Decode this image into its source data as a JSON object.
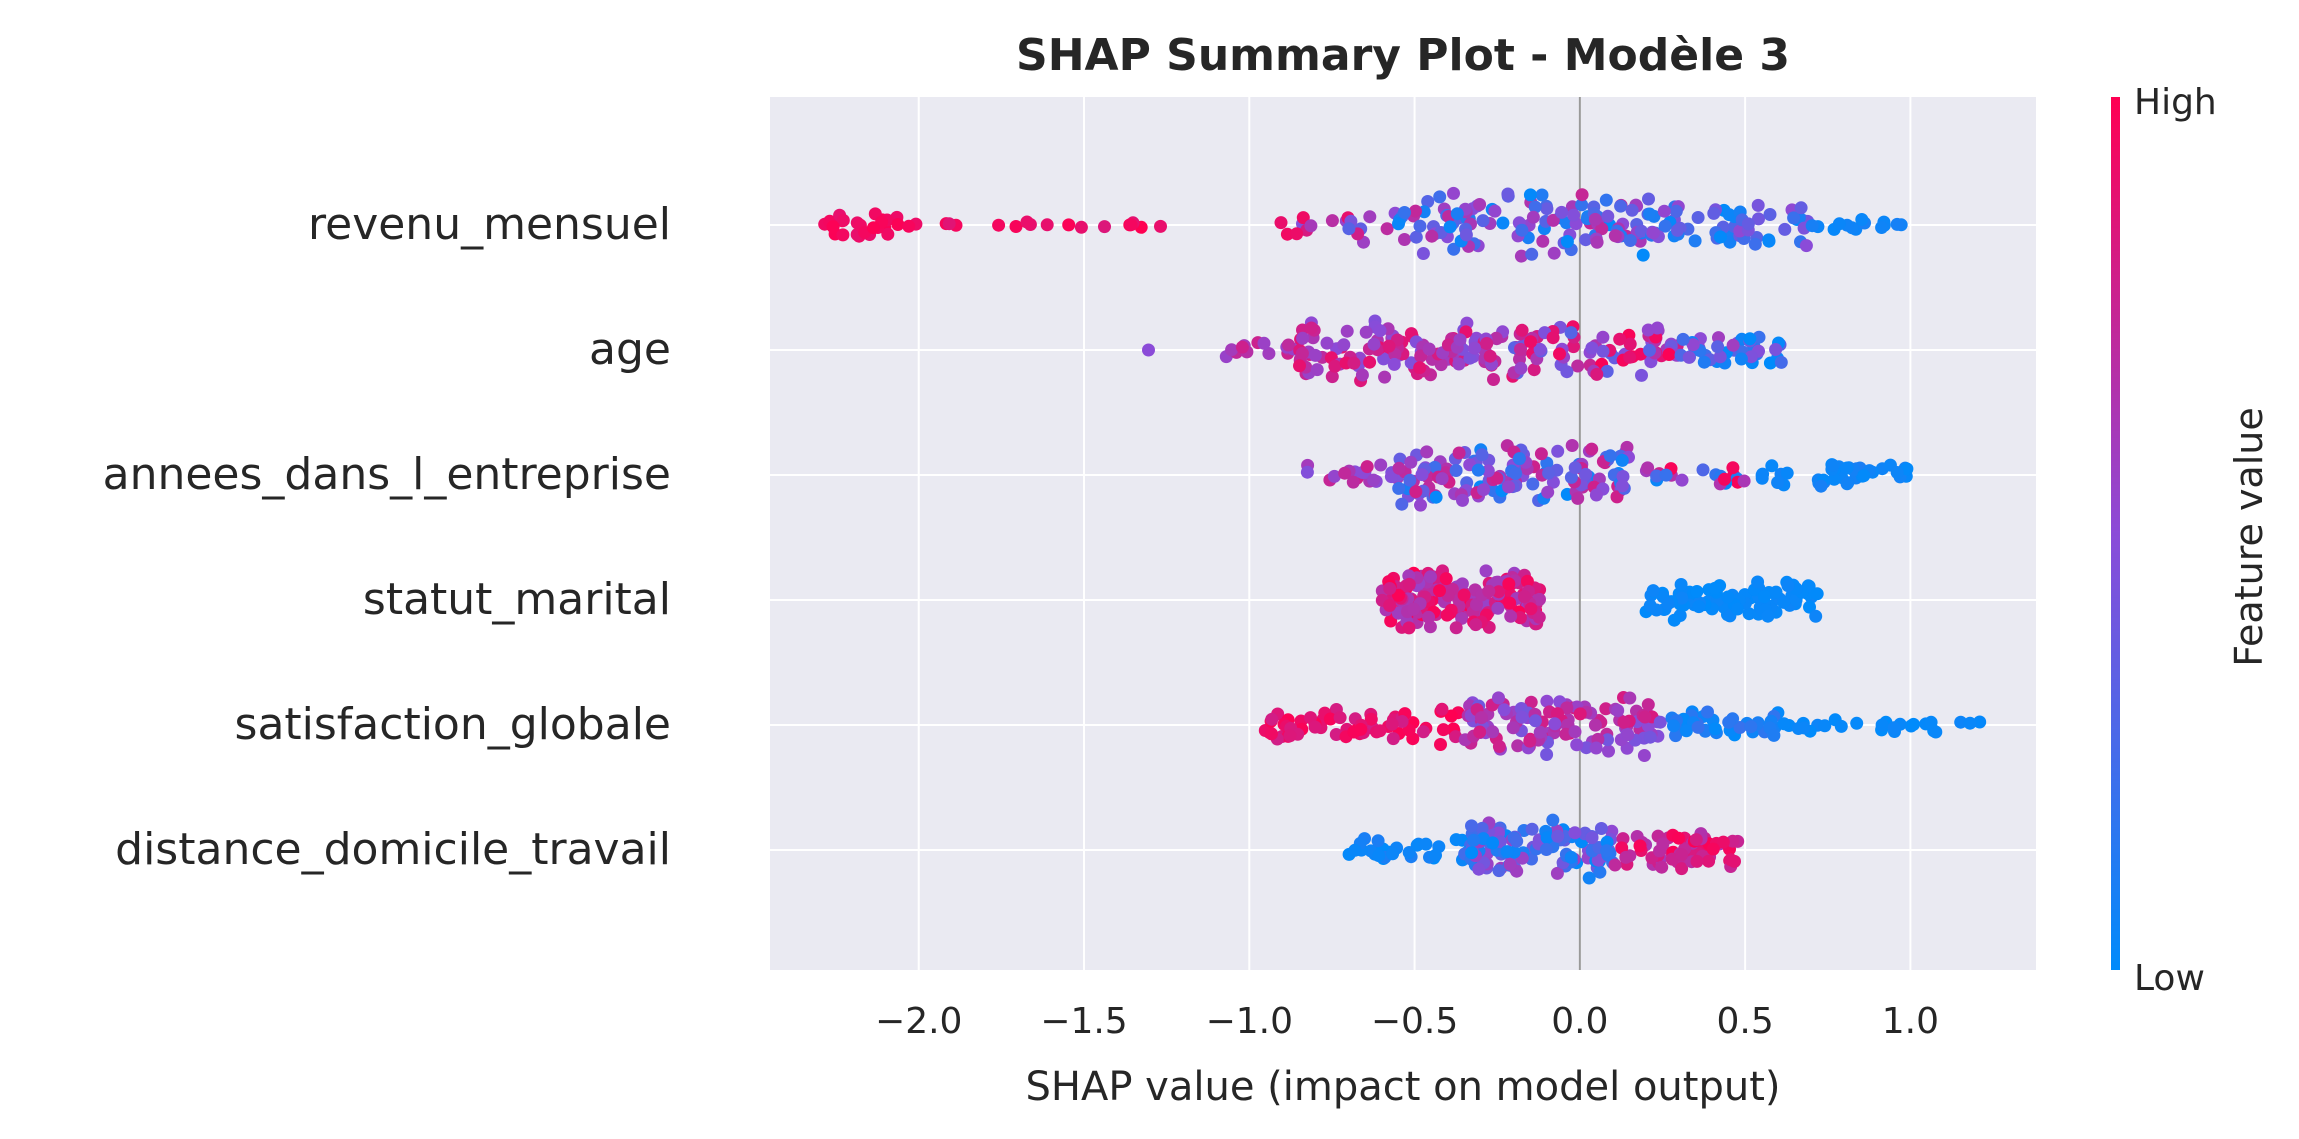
{
  "chart_data": {
    "type": "scatter",
    "title": "SHAP Summary Plot - Modèle 3",
    "xlabel": "SHAP value (impact on model output)",
    "ylabel": "",
    "xlim": [
      -2.45,
      1.38
    ],
    "xticks": [
      -2.0,
      -1.5,
      -1.0,
      -0.5,
      0.0,
      0.5,
      1.0
    ],
    "xtick_labels": [
      "−2.0",
      "−1.5",
      "−1.0",
      "−0.5",
      "0.0",
      "0.5",
      "1.0"
    ],
    "grid": true,
    "colorbar": {
      "label": "Feature value",
      "high_label": "High",
      "low_label": "Low",
      "low_color": "#008bfb",
      "mid_color": "#8b4bd8",
      "high_color": "#ff0052"
    },
    "features": [
      {
        "name": "revenu_mensuel",
        "clusters": [
          {
            "min": -2.32,
            "max": -2.0,
            "n": 26,
            "c0": 0.9,
            "c1": 1.0,
            "width": 0.5
          },
          {
            "min": -2.0,
            "max": -1.05,
            "n": 16,
            "c0": 0.85,
            "c1": 1.0,
            "width": 0.12
          },
          {
            "min": -0.92,
            "max": -0.55,
            "n": 18,
            "c0": 0.25,
            "c1": 0.95,
            "width": 0.6
          },
          {
            "min": -0.55,
            "max": 0.2,
            "n": 120,
            "c0": 0.0,
            "c1": 0.75,
            "width": 1.0
          },
          {
            "min": 0.2,
            "max": 0.7,
            "n": 60,
            "c0": 0.0,
            "c1": 0.55,
            "width": 0.9
          },
          {
            "min": 0.7,
            "max": 1.03,
            "n": 14,
            "c0": 0.0,
            "c1": 0.1,
            "width": 0.2
          }
        ]
      },
      {
        "name": "age",
        "clusters": [
          {
            "min": -1.31,
            "max": -1.3,
            "n": 1,
            "c0": 0.5,
            "c1": 0.5,
            "width": 0.0
          },
          {
            "min": -1.07,
            "max": -0.85,
            "n": 14,
            "c0": 0.55,
            "c1": 0.8,
            "width": 0.4
          },
          {
            "min": -0.85,
            "max": -0.2,
            "n": 120,
            "c0": 0.45,
            "c1": 0.9,
            "width": 1.0
          },
          {
            "min": -0.2,
            "max": 0.3,
            "n": 80,
            "c0": 0.3,
            "c1": 1.0,
            "width": 0.9
          },
          {
            "min": 0.3,
            "max": 0.65,
            "n": 40,
            "c0": 0.0,
            "c1": 0.6,
            "width": 0.6
          }
        ]
      },
      {
        "name": "annees_dans_l_entreprise",
        "clusters": [
          {
            "min": -0.85,
            "max": -0.55,
            "n": 20,
            "c0": 0.45,
            "c1": 0.8,
            "width": 0.4
          },
          {
            "min": -0.55,
            "max": 0.15,
            "n": 140,
            "c0": 0.0,
            "c1": 0.8,
            "width": 1.0
          },
          {
            "min": 0.2,
            "max": 0.5,
            "n": 20,
            "c0": 0.0,
            "c1": 1.0,
            "width": 0.3
          },
          {
            "min": 0.55,
            "max": 1.0,
            "n": 40,
            "c0": 0.0,
            "c1": 0.1,
            "width": 0.45
          }
        ]
      },
      {
        "name": "statut_marital",
        "clusters": [
          {
            "min": -0.6,
            "max": -0.12,
            "n": 170,
            "c0": 0.55,
            "c1": 1.0,
            "width": 1.0
          },
          {
            "min": 0.2,
            "max": 0.72,
            "n": 90,
            "c0": 0.0,
            "c1": 0.05,
            "width": 0.65
          }
        ]
      },
      {
        "name": "satisfaction_globale",
        "clusters": [
          {
            "min": -0.96,
            "max": -0.35,
            "n": 70,
            "c0": 0.8,
            "c1": 1.0,
            "width": 0.6
          },
          {
            "min": -0.35,
            "max": 0.25,
            "n": 120,
            "c0": 0.4,
            "c1": 0.85,
            "width": 1.0
          },
          {
            "min": 0.25,
            "max": 0.6,
            "n": 40,
            "c0": 0.0,
            "c1": 0.2,
            "width": 0.5
          },
          {
            "min": 0.6,
            "max": 1.21,
            "n": 26,
            "c0": 0.0,
            "c1": 0.05,
            "width": 0.25
          }
        ]
      },
      {
        "name": "distance_domicile_travail",
        "clusters": [
          {
            "min": -0.7,
            "max": -0.35,
            "n": 30,
            "c0": 0.0,
            "c1": 0.1,
            "width": 0.45
          },
          {
            "min": -0.35,
            "max": 0.1,
            "n": 120,
            "c0": 0.0,
            "c1": 0.6,
            "width": 1.0
          },
          {
            "min": 0.1,
            "max": 0.48,
            "n": 60,
            "c0": 0.6,
            "c1": 1.0,
            "width": 0.65
          }
        ]
      }
    ]
  }
}
